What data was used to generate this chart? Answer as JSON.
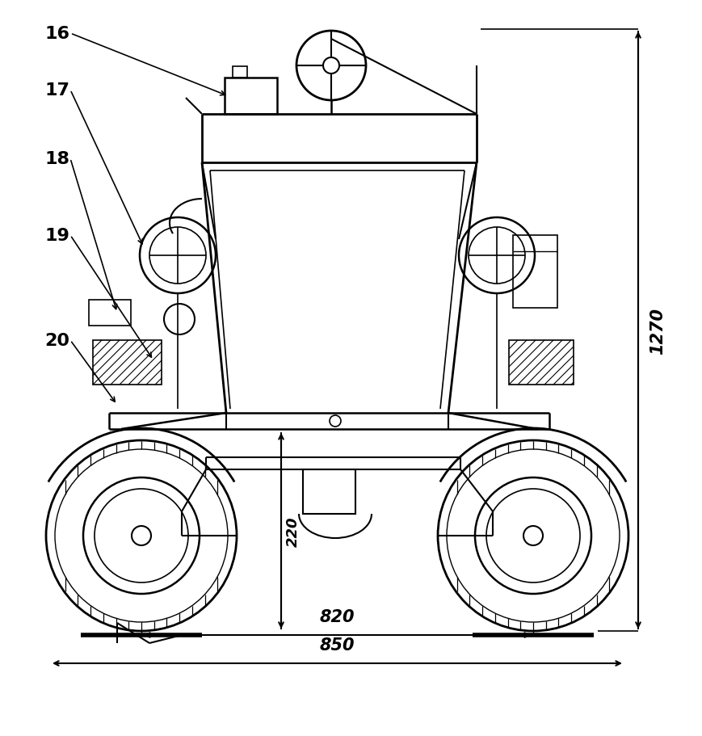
{
  "bg_color": "#ffffff",
  "line_color": "#000000",
  "fig_width": 8.7,
  "fig_height": 9.12,
  "dim_820": "820",
  "dim_850": "850",
  "dim_220": "220",
  "dim_1270": "1270",
  "labels": [
    "16",
    "17",
    "18",
    "19",
    "20"
  ]
}
